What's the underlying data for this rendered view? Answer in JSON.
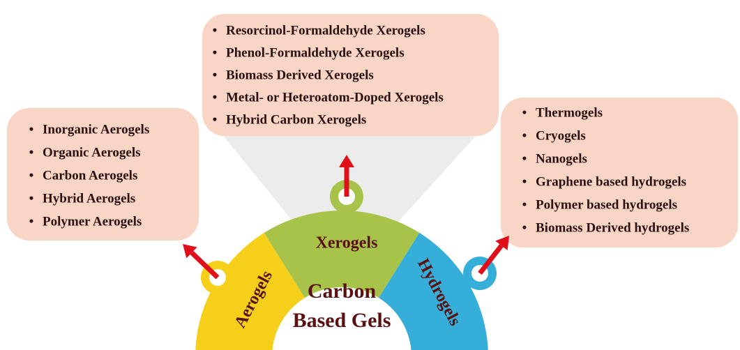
{
  "center": {
    "lines": [
      "Carbon",
      "Based Gels"
    ]
  },
  "nodes": [
    {
      "label": "Aerogels",
      "items": [
        "Inorganic Aerogels",
        "Organic Aerogels",
        "Carbon Aerogels",
        "Hybrid Aerogels",
        "Polymer Aerogels"
      ]
    },
    {
      "label": "Xerogels",
      "items": [
        "Resorcinol-Formaldehyde Xerogels",
        "Phenol-Formaldehyde Xerogels",
        "Biomass Derived Xerogels",
        "Metal- or Heteroatom-Doped Xerogels",
        "Hybrid Carbon Xerogels"
      ]
    },
    {
      "label": "Hydrogels",
      "items": [
        "Thermogels",
        "Cryogels",
        "Nanogels",
        "Graphene based hydrogels",
        "Polymer based hydrogels",
        "Biomass Derived hydrogels"
      ]
    }
  ]
}
